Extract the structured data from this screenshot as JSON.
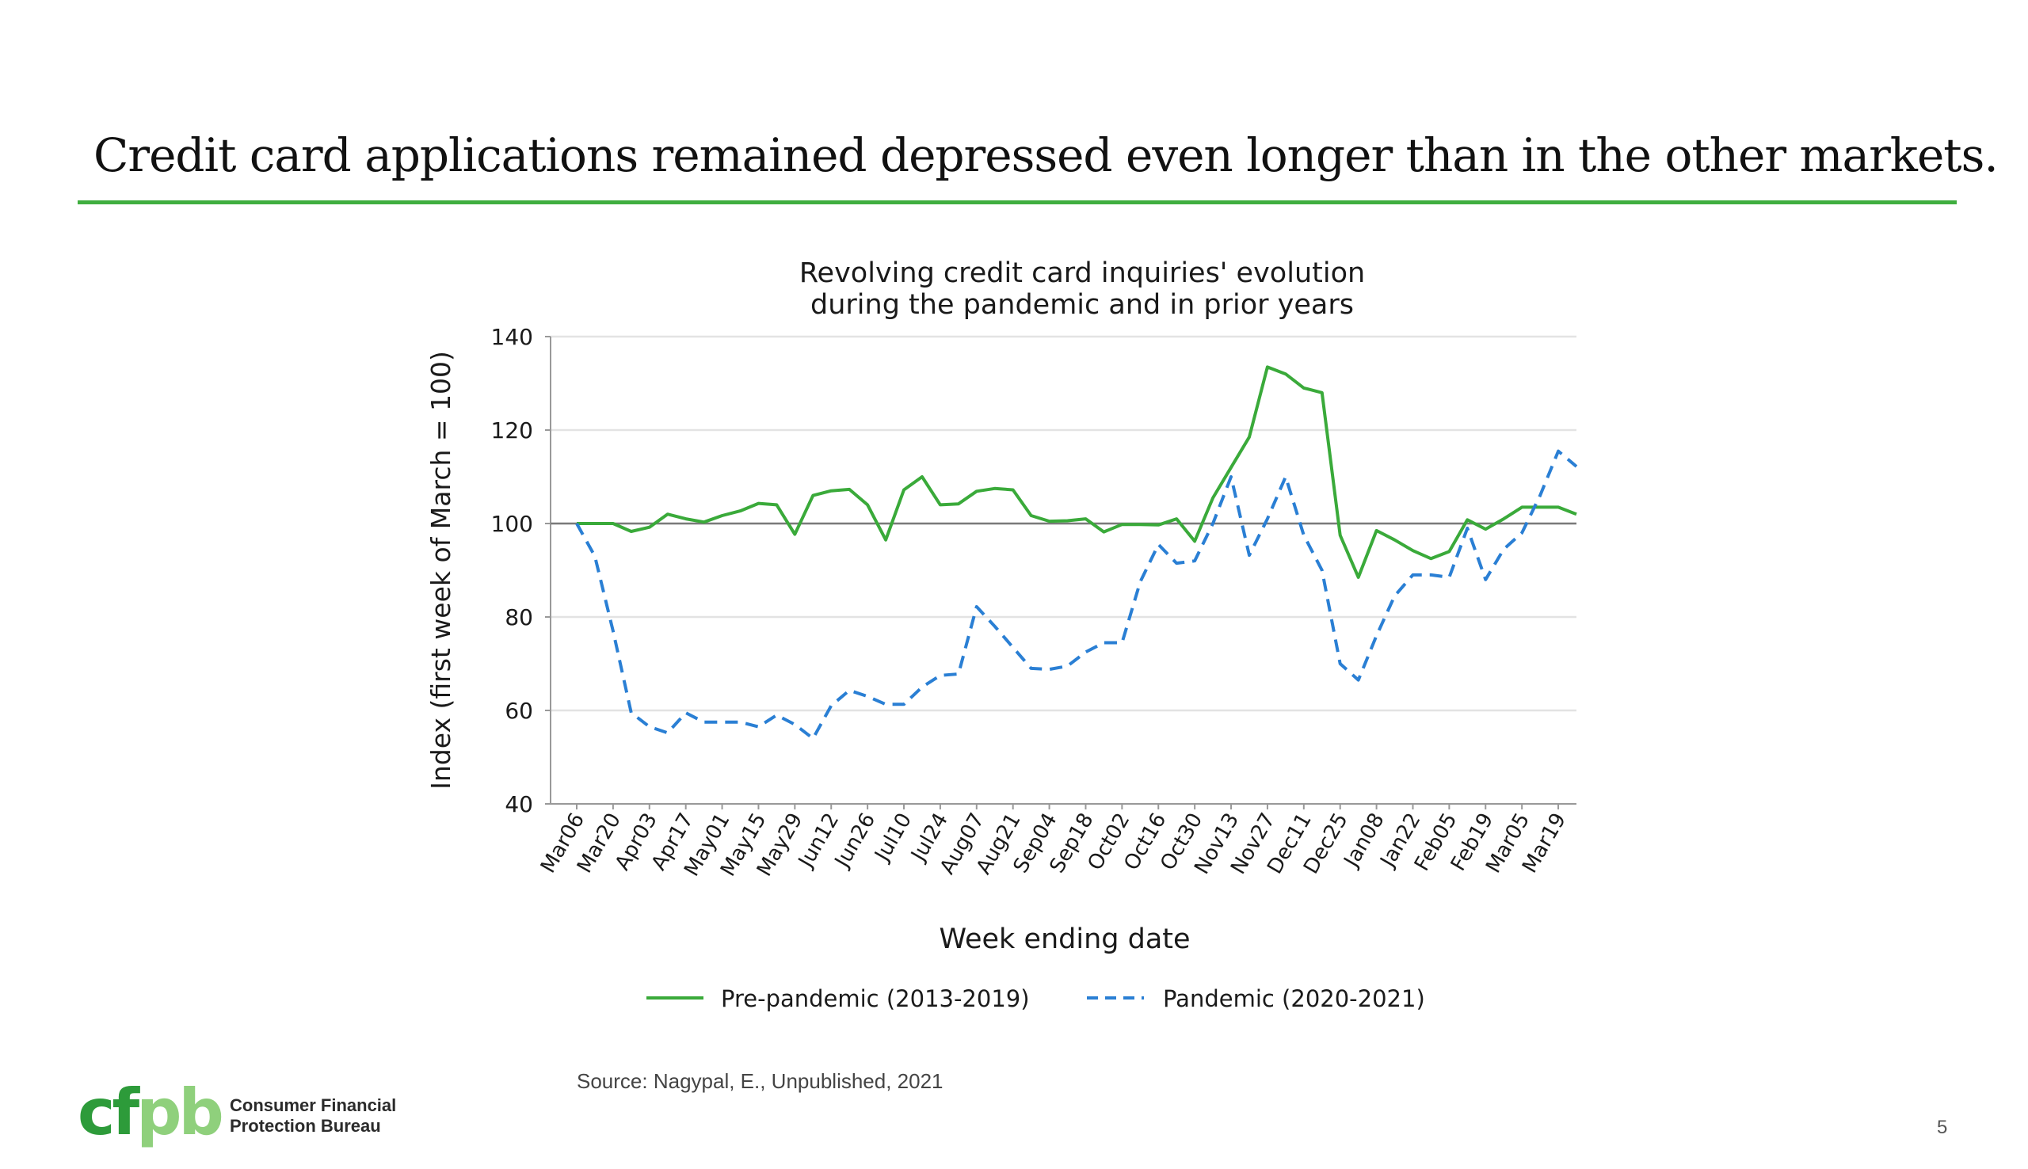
{
  "slide": {
    "title": "Credit card applications remained depressed even longer than in the other markets.",
    "source": "Source: Nagypal, E., Unpublished, 2021",
    "page_number": "5",
    "logo": {
      "mark": "cfpb",
      "name_line1": "Consumer Financial",
      "name_line2": "Protection Bureau"
    },
    "colors": {
      "accent_rule": "#3fae3f",
      "logo_dark_green": "#2d9b3a",
      "logo_light_green": "#8fd07c"
    }
  },
  "chart_data": {
    "type": "line",
    "title_line1": "Revolving credit card inquiries' evolution",
    "title_line2": "during the pandemic and in prior years",
    "xlabel": "Week ending date",
    "ylabel": "Index (first week of March = 100)",
    "ylim": [
      40,
      140
    ],
    "yticks": [
      40,
      60,
      80,
      100,
      120,
      140
    ],
    "grid": "horizontal",
    "reference_line": 100,
    "legend_position": "bottom",
    "x_tick_labels": [
      "Mar06",
      "Mar20",
      "Apr03",
      "Apr17",
      "May01",
      "May15",
      "May29",
      "Jun12",
      "Jun26",
      "Jul10",
      "Jul24",
      "Aug07",
      "Aug21",
      "Sep04",
      "Sep18",
      "Oct02",
      "Oct16",
      "Oct30",
      "Nov13",
      "Nov27",
      "Dec11",
      "Dec25",
      "Jan08",
      "Jan22",
      "Feb05",
      "Feb19",
      "Mar05",
      "Mar19"
    ],
    "series": [
      {
        "name": "Pre-pandemic (2013-2019)",
        "color": "#3aaa3a",
        "style": "solid",
        "values": [
          100,
          100,
          100,
          98.3,
          99.2,
          102,
          101,
          100.3,
          101.7,
          102.7,
          104.3,
          104,
          97.7,
          106,
          107,
          107.3,
          104,
          96.5,
          107.2,
          110,
          104,
          104.2,
          106.9,
          107.5,
          107.2,
          101.7,
          100.5,
          100.6,
          101,
          98.2,
          99.8,
          99.8,
          99.7,
          101,
          96.2,
          105.5,
          112,
          118.5,
          133.5,
          132,
          129,
          128,
          97.5,
          88.5,
          98.5,
          96.5,
          94.2,
          92.5,
          94,
          100.8,
          98.8,
          101,
          103.5,
          103.5,
          103.5,
          102
        ]
      },
      {
        "name": "Pandemic (2020-2021)",
        "color": "#2a7fd4",
        "style": "dashed",
        "values": [
          100,
          93,
          77,
          59.5,
          56.5,
          55.2,
          59.5,
          57.5,
          57.5,
          57.5,
          56.5,
          59,
          57,
          54,
          61,
          64.3,
          63,
          61.3,
          61.3,
          65,
          67.5,
          67.8,
          82.2,
          78,
          73.5,
          69,
          68.8,
          69.5,
          72.5,
          74.5,
          74.5,
          87.5,
          95.5,
          91.5,
          92,
          100,
          110,
          93.2,
          101,
          110,
          97.5,
          90,
          70,
          66.5,
          76,
          84.5,
          89,
          89,
          88.5,
          99,
          88,
          94.5,
          98,
          106,
          115.5,
          112.2
        ]
      }
    ]
  }
}
